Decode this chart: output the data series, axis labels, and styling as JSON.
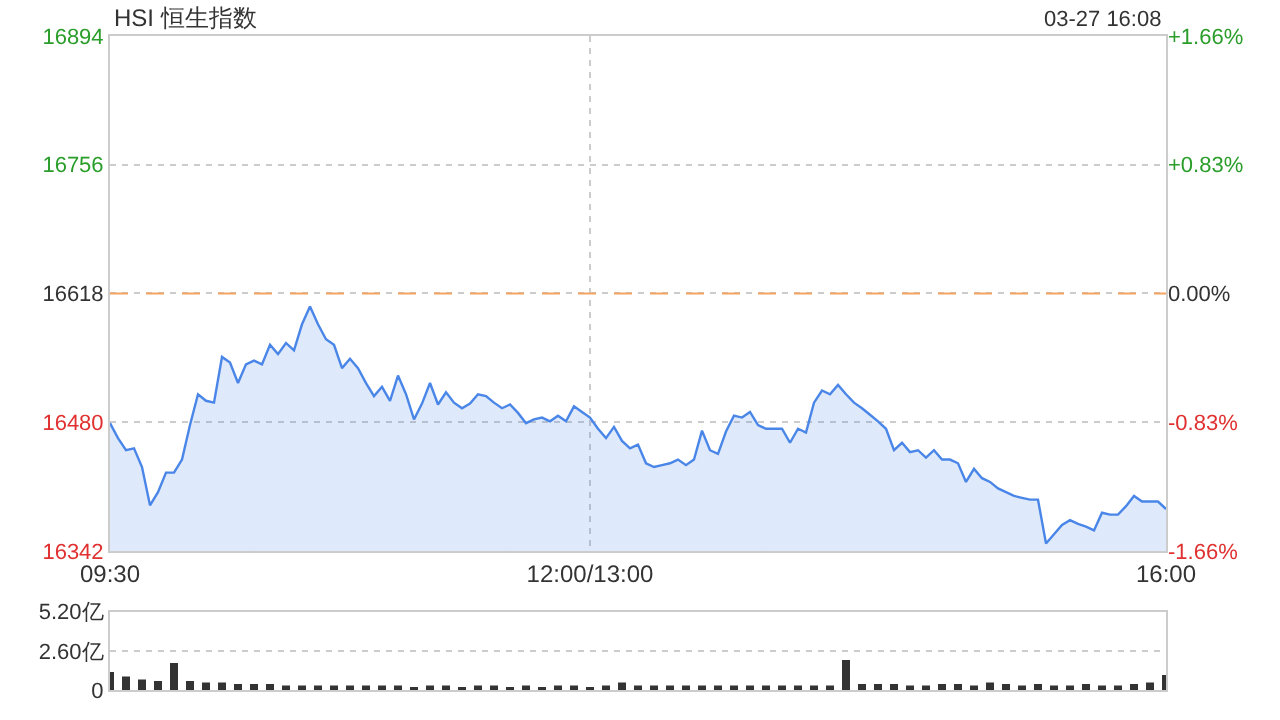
{
  "chart_data": [
    {
      "type": "area",
      "title": "HSI 恒生指数",
      "annotations": [
        "03-27 16:08"
      ],
      "categories": [
        "09:30",
        null,
        null,
        null,
        null,
        null,
        null,
        null,
        null,
        null,
        null,
        null,
        null,
        null,
        null,
        null,
        null,
        null,
        null,
        null,
        null,
        null,
        null,
        null,
        null,
        null,
        null,
        null,
        null,
        null,
        null,
        null,
        null,
        null,
        null,
        null,
        null,
        null,
        null,
        null,
        null,
        null,
        null,
        null,
        null,
        null,
        null,
        null,
        null,
        null,
        null,
        null,
        null,
        null,
        null,
        null,
        null,
        null,
        null,
        null,
        "12:00/13:00",
        null,
        null,
        null,
        null,
        null,
        null,
        null,
        null,
        null,
        null,
        null,
        null,
        null,
        null,
        null,
        null,
        null,
        null,
        null,
        null,
        null,
        null,
        null,
        null,
        null,
        null,
        null,
        null,
        null,
        null,
        null,
        null,
        null,
        null,
        null,
        null,
        null,
        null,
        null,
        null,
        null,
        null,
        null,
        null,
        null,
        null,
        null,
        null,
        null,
        null,
        null,
        null,
        null,
        null,
        null,
        null,
        null,
        null,
        null,
        null,
        null,
        null,
        null,
        null,
        null,
        null,
        null,
        null,
        null,
        null,
        null,
        "16:00"
      ],
      "series": [
        {
          "color": "#4a86e8",
          "values": [
            16479,
            16463,
            16450,
            16452,
            16432,
            16391,
            16405,
            16426,
            16426,
            16440,
            16477,
            16510,
            16503,
            16501,
            16550,
            16544,
            16522,
            16542,
            16546,
            16542,
            16563,
            16553,
            16565,
            16557,
            16585,
            16604,
            16585,
            16569,
            16563,
            16538,
            16548,
            16538,
            16522,
            16508,
            16518,
            16503,
            16530,
            16510,
            16483,
            16500,
            16522,
            16499,
            16512,
            16501,
            16495,
            16500,
            16510,
            16508,
            16501,
            16495,
            16499,
            16490,
            16479,
            16483,
            16485,
            16481,
            16487,
            16481,
            16497,
            16491,
            16485,
            16473,
            16463,
            16475,
            16460,
            16452,
            16456,
            16436,
            16432,
            16434,
            16436,
            16440,
            16434,
            16440,
            16471,
            16450,
            16446,
            16470,
            16487,
            16485,
            16491,
            16477,
            16473,
            16473,
            16473,
            16458,
            16473,
            16469,
            16501,
            16514,
            16510,
            16520,
            16510,
            16501,
            16495,
            16488,
            16481,
            16473,
            16450,
            16458,
            16448,
            16450,
            16442,
            16450,
            16440,
            16440,
            16436,
            16416,
            16430,
            16420,
            16416,
            16409,
            16405,
            16401,
            16399,
            16397,
            16397,
            16350,
            16360,
            16370,
            16375,
            16371,
            16368,
            16364,
            16383,
            16381,
            16381,
            16390,
            16401,
            16395,
            16395,
            16395,
            16387
          ]
        }
      ],
      "ylim": [
        16342,
        16894
      ],
      "yticks": [
        16342,
        16480,
        16618,
        16756,
        16894
      ],
      "y2lim": [
        -1.66,
        1.66
      ],
      "y2ticks": [
        {
          "value": -1.66,
          "label": "-1.66%"
        },
        {
          "value": -0.83,
          "label": "-0.83%"
        },
        {
          "value": 0,
          "label": "0.00%"
        },
        {
          "value": 0.83,
          "label": "+0.83%"
        },
        {
          "value": 1.66,
          "label": "+1.66%"
        }
      ],
      "ref_lines": [
        {
          "axis": "y",
          "value": 16618,
          "color": "#f4a460",
          "line_style": "dashed"
        }
      ],
      "grid": true
    },
    {
      "type": "bar",
      "categories": [
        null,
        null,
        null,
        null,
        null,
        null,
        null,
        null,
        null,
        null,
        null,
        null,
        null,
        null,
        null,
        null,
        null,
        null,
        null,
        null,
        null,
        null,
        null,
        null,
        null,
        null,
        null,
        null,
        null,
        null,
        null,
        null,
        null,
        null,
        null,
        null,
        null,
        null,
        null,
        null,
        null,
        null,
        null,
        null,
        null,
        null,
        null,
        null,
        null,
        null,
        null,
        null,
        null,
        null,
        null,
        null,
        null,
        null,
        null,
        null,
        null,
        null,
        null,
        null,
        null,
        null,
        null
      ],
      "series": [
        {
          "color": "#333333",
          "values": [
            1.2,
            0.9,
            0.7,
            0.6,
            1.8,
            0.6,
            0.5,
            0.5,
            0.4,
            0.4,
            0.4,
            0.3,
            0.3,
            0.3,
            0.3,
            0.3,
            0.3,
            0.3,
            0.3,
            0.2,
            0.3,
            0.3,
            0.2,
            0.3,
            0.3,
            0.2,
            0.3,
            0.2,
            0.3,
            0.3,
            0.2,
            0.3,
            0.5,
            0.3,
            0.3,
            0.3,
            0.3,
            0.3,
            0.3,
            0.3,
            0.3,
            0.3,
            0.3,
            0.3,
            0.3,
            0.3,
            2.0,
            0.4,
            0.4,
            0.4,
            0.3,
            0.3,
            0.4,
            0.4,
            0.3,
            0.5,
            0.4,
            0.3,
            0.4,
            0.3,
            0.3,
            0.4,
            0.3,
            0.3,
            0.4,
            0.5,
            1.0
          ]
        }
      ],
      "ylim": [
        0,
        5.2
      ],
      "yticks": [
        {
          "value": 0,
          "label": "0"
        },
        {
          "value": 2.6,
          "label": "2.60亿"
        },
        {
          "value": 5.2,
          "label": "5.20亿"
        }
      ],
      "tick_labels": "y",
      "grid": "y"
    }
  ]
}
